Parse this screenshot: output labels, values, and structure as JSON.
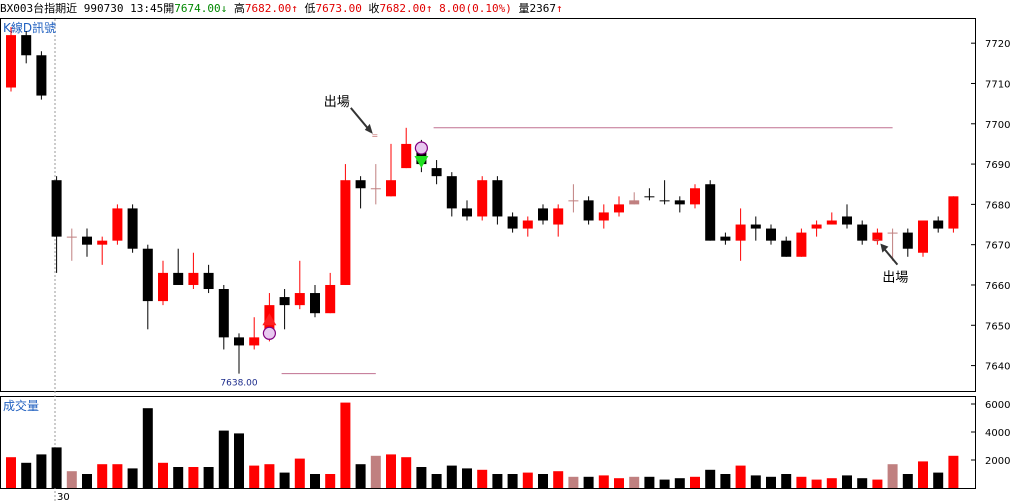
{
  "header": {
    "symbol": "BX003",
    "name": "台指期近",
    "date": "990730",
    "time": "13:45",
    "open_label": "開",
    "open": "7674.00",
    "open_arrow": "↓",
    "high_label": "高",
    "high": "7682.00",
    "high_arrow": "↑",
    "low_label": "低",
    "low": "7673.00",
    "close_label": "收",
    "close": "7682.00",
    "close_arrow": "↑",
    "change": "8.00(0.10%)",
    "volume_label": "量",
    "volume": "2367",
    "volume_arrow": "↑"
  },
  "chart_data": {
    "type": "candlestick",
    "price_panel_label": "K線D訊號",
    "volume_panel_label": "成交量",
    "y_ticks": [
      7720,
      7710,
      7700,
      7690,
      7680,
      7670,
      7660,
      7650,
      7640
    ],
    "volume_ticks": [
      6000,
      4000,
      2000
    ],
    "ylim": [
      7630,
      7726
    ],
    "volume_lim": [
      0,
      6500
    ],
    "date_marker": "30",
    "low_marker": {
      "label": "7638.00",
      "value": 7638,
      "index": 15
    },
    "annotations": [
      {
        "text": "出場",
        "index": 24,
        "value": 7697
      },
      {
        "text": "出場",
        "index": 57,
        "value": 7671
      }
    ],
    "signals": [
      {
        "type": "buy",
        "index": 17,
        "value": 7650
      },
      {
        "type": "sell",
        "index": 27,
        "value": 7692
      }
    ],
    "ref_lines": [
      {
        "value": 7699,
        "from": 28,
        "to": 58
      },
      {
        "value": 7638,
        "from": 18,
        "to": 24
      }
    ],
    "candles": [
      {
        "o": 7709,
        "c": 7722,
        "h": 7724,
        "l": 7708,
        "v": 2200,
        "col": "red"
      },
      {
        "o": 7722,
        "c": 7717,
        "h": 7723,
        "l": 7715,
        "v": 1800,
        "col": "black"
      },
      {
        "o": 7717,
        "c": 7707,
        "h": 7718,
        "l": 7706,
        "v": 2400,
        "col": "black"
      },
      {
        "o": 7686,
        "c": 7672,
        "h": 7687,
        "l": 7663,
        "v": 2900,
        "col": "black"
      },
      {
        "o": 7672,
        "c": 7672,
        "h": 7674,
        "l": 7666,
        "v": 1200,
        "col": "pink"
      },
      {
        "o": 7672,
        "c": 7670,
        "h": 7674,
        "l": 7667,
        "v": 1000,
        "col": "black"
      },
      {
        "o": 7670,
        "c": 7671,
        "h": 7672,
        "l": 7665,
        "v": 1700,
        "col": "red"
      },
      {
        "o": 7671,
        "c": 7679,
        "h": 7680,
        "l": 7670,
        "v": 1700,
        "col": "red"
      },
      {
        "o": 7679,
        "c": 7669,
        "h": 7680,
        "l": 7668,
        "v": 1400,
        "col": "black"
      },
      {
        "o": 7669,
        "c": 7656,
        "h": 7670,
        "l": 7649,
        "v": 5700,
        "col": "black"
      },
      {
        "o": 7656,
        "c": 7663,
        "h": 7666,
        "l": 7655,
        "v": 1800,
        "col": "red"
      },
      {
        "o": 7663,
        "c": 7660,
        "h": 7669,
        "l": 7660,
        "v": 1500,
        "col": "black"
      },
      {
        "o": 7660,
        "c": 7663,
        "h": 7668,
        "l": 7659,
        "v": 1500,
        "col": "red"
      },
      {
        "o": 7663,
        "c": 7659,
        "h": 7665,
        "l": 7658,
        "v": 1500,
        "col": "black"
      },
      {
        "o": 7659,
        "c": 7647,
        "h": 7660,
        "l": 7644,
        "v": 4100,
        "col": "black"
      },
      {
        "o": 7647,
        "c": 7645,
        "h": 7648,
        "l": 7638,
        "v": 3900,
        "col": "black"
      },
      {
        "o": 7645,
        "c": 7647,
        "h": 7652,
        "l": 7644,
        "v": 1600,
        "col": "red"
      },
      {
        "o": 7647,
        "c": 7655,
        "h": 7658,
        "l": 7646,
        "v": 1700,
        "col": "red"
      },
      {
        "o": 7655,
        "c": 7657,
        "h": 7659,
        "l": 7649,
        "v": 1100,
        "col": "black"
      },
      {
        "o": 7655,
        "c": 7658,
        "h": 7666,
        "l": 7654,
        "v": 2100,
        "col": "red"
      },
      {
        "o": 7658,
        "c": 7653,
        "h": 7660,
        "l": 7652,
        "v": 1000,
        "col": "black"
      },
      {
        "o": 7653,
        "c": 7660,
        "h": 7663,
        "l": 7653,
        "v": 1000,
        "col": "red"
      },
      {
        "o": 7660,
        "c": 7686,
        "h": 7690,
        "l": 7660,
        "v": 6100,
        "col": "red"
      },
      {
        "o": 7686,
        "c": 7684,
        "h": 7687,
        "l": 7679,
        "v": 1700,
        "col": "black"
      },
      {
        "o": 7684,
        "c": 7684,
        "h": 7690,
        "l": 7680,
        "v": 2300,
        "col": "pink"
      },
      {
        "o": 7682,
        "c": 7686,
        "h": 7695,
        "l": 7682,
        "v": 2400,
        "col": "red"
      },
      {
        "o": 7689,
        "c": 7695,
        "h": 7699,
        "l": 7689,
        "v": 2200,
        "col": "red"
      },
      {
        "o": 7695,
        "c": 7690,
        "h": 7696,
        "l": 7688,
        "v": 1500,
        "col": "black"
      },
      {
        "o": 7689,
        "c": 7687,
        "h": 7691,
        "l": 7685,
        "v": 1000,
        "col": "black"
      },
      {
        "o": 7687,
        "c": 7679,
        "h": 7688,
        "l": 7677,
        "v": 1600,
        "col": "black"
      },
      {
        "o": 7679,
        "c": 7677,
        "h": 7681,
        "l": 7676,
        "v": 1400,
        "col": "black"
      },
      {
        "o": 7677,
        "c": 7686,
        "h": 7687,
        "l": 7676,
        "v": 1300,
        "col": "red"
      },
      {
        "o": 7686,
        "c": 7677,
        "h": 7687,
        "l": 7675,
        "v": 1000,
        "col": "black"
      },
      {
        "o": 7677,
        "c": 7674,
        "h": 7678,
        "l": 7673,
        "v": 1000,
        "col": "black"
      },
      {
        "o": 7674,
        "c": 7676,
        "h": 7677,
        "l": 7672,
        "v": 1100,
        "col": "red"
      },
      {
        "o": 7676,
        "c": 7679,
        "h": 7680,
        "l": 7675,
        "v": 1000,
        "col": "black"
      },
      {
        "o": 7675,
        "c": 7679,
        "h": 7680,
        "l": 7672,
        "v": 1200,
        "col": "red"
      },
      {
        "o": 7681,
        "c": 7681,
        "h": 7685,
        "l": 7678,
        "v": 800,
        "col": "pink"
      },
      {
        "o": 7681,
        "c": 7676,
        "h": 7682,
        "l": 7675,
        "v": 800,
        "col": "black"
      },
      {
        "o": 7676,
        "c": 7678,
        "h": 7680,
        "l": 7674,
        "v": 900,
        "col": "red"
      },
      {
        "o": 7678,
        "c": 7680,
        "h": 7682,
        "l": 7677,
        "v": 700,
        "col": "red"
      },
      {
        "o": 7680,
        "c": 7681,
        "h": 7683,
        "l": 7680,
        "v": 800,
        "col": "pink"
      },
      {
        "o": 7682,
        "c": 7682,
        "h": 7684,
        "l": 7681,
        "v": 800,
        "col": "black"
      },
      {
        "o": 7681,
        "c": 7681,
        "h": 7686,
        "l": 7680,
        "v": 600,
        "col": "black"
      },
      {
        "o": 7681,
        "c": 7680,
        "h": 7682,
        "l": 7678,
        "v": 700,
        "col": "black"
      },
      {
        "o": 7680,
        "c": 7684,
        "h": 7685,
        "l": 7679,
        "v": 800,
        "col": "red"
      },
      {
        "o": 7685,
        "c": 7671,
        "h": 7686,
        "l": 7671,
        "v": 1300,
        "col": "black"
      },
      {
        "o": 7671,
        "c": 7672,
        "h": 7673,
        "l": 7670,
        "v": 1000,
        "col": "black"
      },
      {
        "o": 7671,
        "c": 7675,
        "h": 7679,
        "l": 7666,
        "v": 1600,
        "col": "red"
      },
      {
        "o": 7675,
        "c": 7674,
        "h": 7677,
        "l": 7671,
        "v": 900,
        "col": "black"
      },
      {
        "o": 7674,
        "c": 7671,
        "h": 7675,
        "l": 7670,
        "v": 800,
        "col": "black"
      },
      {
        "o": 7671,
        "c": 7667,
        "h": 7672,
        "l": 7667,
        "v": 1000,
        "col": "black"
      },
      {
        "o": 7667,
        "c": 7673,
        "h": 7674,
        "l": 7667,
        "v": 800,
        "col": "red"
      },
      {
        "o": 7674,
        "c": 7675,
        "h": 7676,
        "l": 7672,
        "v": 600,
        "col": "red"
      },
      {
        "o": 7675,
        "c": 7676,
        "h": 7678,
        "l": 7675,
        "v": 700,
        "col": "red"
      },
      {
        "o": 7677,
        "c": 7675,
        "h": 7680,
        "l": 7674,
        "v": 900,
        "col": "black"
      },
      {
        "o": 7675,
        "c": 7671,
        "h": 7676,
        "l": 7670,
        "v": 700,
        "col": "black"
      },
      {
        "o": 7671,
        "c": 7673,
        "h": 7674,
        "l": 7670,
        "v": 600,
        "col": "red"
      },
      {
        "o": 7673,
        "c": 7673,
        "h": 7674,
        "l": 7666,
        "v": 1700,
        "col": "pink"
      },
      {
        "o": 7673,
        "c": 7669,
        "h": 7674,
        "l": 7667,
        "v": 1000,
        "col": "black"
      },
      {
        "o": 7668,
        "c": 7676,
        "h": 7676,
        "l": 7667,
        "v": 1900,
        "col": "red"
      },
      {
        "o": 7676,
        "c": 7674,
        "h": 7677,
        "l": 7673,
        "v": 1100,
        "col": "black"
      },
      {
        "o": 7674,
        "c": 7682,
        "h": 7682,
        "l": 7673,
        "v": 2300,
        "col": "red"
      }
    ]
  }
}
